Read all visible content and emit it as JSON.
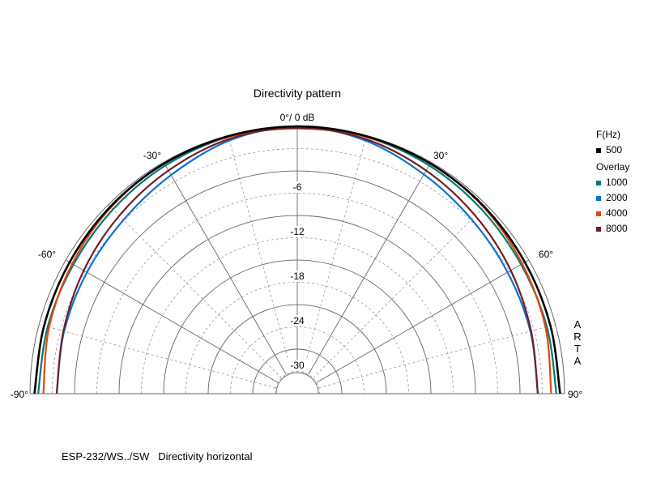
{
  "chart_data": {
    "type": "polar",
    "title": "Directivity pattern",
    "top_label": "0°/ 0 dB",
    "angle_labels": [
      {
        "angle": -90,
        "text": "-90°"
      },
      {
        "angle": -60,
        "text": "-60°"
      },
      {
        "angle": -30,
        "text": "-30°"
      },
      {
        "angle": 30,
        "text": "30°"
      },
      {
        "angle": 60,
        "text": "60°"
      },
      {
        "angle": 90,
        "text": "90°"
      }
    ],
    "radial_range_db": [
      -36,
      0
    ],
    "radial_ticks": [
      {
        "db": -6,
        "text": "-6"
      },
      {
        "db": -12,
        "text": "-12"
      },
      {
        "db": -18,
        "text": "-18"
      },
      {
        "db": -24,
        "text": "-24"
      },
      {
        "db": -30,
        "text": "-30"
      }
    ],
    "legend_header": "F(Hz)",
    "legend_overlay_label": "Overlay",
    "series": [
      {
        "name": "500",
        "color": "#000000",
        "points": [
          [
            -90,
            -0.6
          ],
          [
            -75,
            -0.7
          ],
          [
            -60,
            -0.6
          ],
          [
            -45,
            -0.4
          ],
          [
            -30,
            -0.2
          ],
          [
            -15,
            -0.1
          ],
          [
            0,
            0
          ],
          [
            15,
            -0.1
          ],
          [
            30,
            -0.2
          ],
          [
            45,
            -0.4
          ],
          [
            60,
            -0.6
          ],
          [
            75,
            -0.7
          ],
          [
            90,
            -0.6
          ]
        ]
      },
      {
        "name": "1000",
        "color": "#007a73",
        "points": [
          [
            -90,
            -1.1
          ],
          [
            -75,
            -1.2
          ],
          [
            -60,
            -1.2
          ],
          [
            -45,
            -0.9
          ],
          [
            -30,
            -0.5
          ],
          [
            -15,
            -0.2
          ],
          [
            0,
            0
          ],
          [
            15,
            -0.2
          ],
          [
            30,
            -0.5
          ],
          [
            45,
            -0.9
          ],
          [
            60,
            -1.2
          ],
          [
            75,
            -1.2
          ],
          [
            90,
            -1.1
          ]
        ]
      },
      {
        "name": "2000",
        "color": "#0f6fd6",
        "points": [
          [
            -90,
            -3.6
          ],
          [
            -75,
            -3.5
          ],
          [
            -60,
            -3.3
          ],
          [
            -45,
            -2.9
          ],
          [
            -30,
            -2.0
          ],
          [
            -15,
            -0.7
          ],
          [
            0,
            0
          ],
          [
            15,
            -0.7
          ],
          [
            30,
            -1.9
          ],
          [
            45,
            -2.8
          ],
          [
            60,
            -3.3
          ],
          [
            75,
            -3.5
          ],
          [
            90,
            -3.6
          ]
        ]
      },
      {
        "name": "4000",
        "color": "#e2450f",
        "points": [
          [
            -90,
            -1.8
          ],
          [
            -75,
            -1.4
          ],
          [
            -60,
            -1.0
          ],
          [
            -45,
            -0.5
          ],
          [
            -30,
            -0.2
          ],
          [
            -15,
            -0.2
          ],
          [
            0,
            -0.3
          ],
          [
            15,
            -0.2
          ],
          [
            30,
            -0.2
          ],
          [
            45,
            -0.5
          ],
          [
            60,
            -1.0
          ],
          [
            75,
            -1.4
          ],
          [
            90,
            -1.8
          ]
        ]
      },
      {
        "name": "8000",
        "color": "#6e1f24",
        "points": [
          [
            -90,
            -3.6
          ],
          [
            -75,
            -3.4
          ],
          [
            -60,
            -2.8
          ],
          [
            -45,
            -2.1
          ],
          [
            -30,
            -1.3
          ],
          [
            -15,
            -0.5
          ],
          [
            0,
            -0.2
          ],
          [
            15,
            -0.5
          ],
          [
            30,
            -1.3
          ],
          [
            45,
            -2.1
          ],
          [
            60,
            -2.8
          ],
          [
            75,
            -3.4
          ],
          [
            90,
            -3.6
          ]
        ]
      }
    ],
    "grid": true
  },
  "watermark": "ARTA",
  "footer": {
    "left": "ESP-232/WS../SW",
    "right": "Directivity horizontal"
  }
}
